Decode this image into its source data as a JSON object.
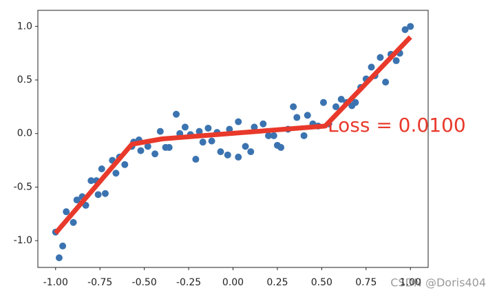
{
  "chart_data": {
    "type": "scatter",
    "xlim": [
      -1.1,
      1.1
    ],
    "ylim": [
      -1.25,
      1.15
    ],
    "xticks": [
      {
        "value": -1,
        "label": "-1.00"
      },
      {
        "value": -0.75,
        "label": "-0.75"
      },
      {
        "value": -0.5,
        "label": "-0.50"
      },
      {
        "value": -0.25,
        "label": "-0.25"
      },
      {
        "value": 0,
        "label": "0.00"
      },
      {
        "value": 0.25,
        "label": "0.25"
      },
      {
        "value": 0.5,
        "label": "0.50"
      },
      {
        "value": 0.75,
        "label": "0.75"
      },
      {
        "value": 1,
        "label": "1.00"
      }
    ],
    "yticks": [
      {
        "value": -1,
        "label": "-1.0"
      },
      -0.5,
      {
        "value": 0,
        "label": "0.0"
      },
      0.5,
      {
        "value": 1,
        "label": "1.0"
      }
    ],
    "annotation": "Loss = 0.0100",
    "watermark": "CSDN @Doris404",
    "series": [
      {
        "type": "scatter",
        "color": "#3b73b0",
        "x": [
          -1.0,
          -0.98,
          -0.96,
          -0.94,
          -0.9,
          -0.88,
          -0.85,
          -0.83,
          -0.8,
          -0.77,
          -0.76,
          -0.74,
          -0.72,
          -0.68,
          -0.66,
          -0.64,
          -0.61,
          -0.57,
          -0.56,
          -0.53,
          -0.52,
          -0.48,
          -0.44,
          -0.41,
          -0.38,
          -0.36,
          -0.32,
          -0.3,
          -0.27,
          -0.24,
          -0.21,
          -0.19,
          -0.17,
          -0.14,
          -0.12,
          -0.09,
          -0.07,
          -0.03,
          -0.02,
          0.03,
          0.03,
          0.07,
          0.1,
          0.12,
          0.17,
          0.2,
          0.23,
          0.25,
          0.27,
          0.31,
          0.34,
          0.36,
          0.4,
          0.42,
          0.45,
          0.48,
          0.51,
          0.54,
          0.58,
          0.61,
          0.64,
          0.67,
          0.69,
          0.72,
          0.75,
          0.78,
          0.8,
          0.83,
          0.86,
          0.89,
          0.92,
          0.94,
          0.97,
          1.0
        ],
        "y": [
          -0.92,
          -1.16,
          -1.05,
          -0.73,
          -0.83,
          -0.62,
          -0.59,
          -0.67,
          -0.44,
          -0.44,
          -0.57,
          -0.33,
          -0.56,
          -0.25,
          -0.37,
          -0.22,
          -0.29,
          -0.12,
          -0.08,
          -0.06,
          -0.16,
          -0.12,
          -0.19,
          0.02,
          -0.13,
          -0.13,
          0.18,
          0.0,
          0.06,
          -0.01,
          -0.24,
          0.02,
          -0.08,
          0.05,
          -0.07,
          0.01,
          -0.17,
          -0.2,
          0.04,
          0.11,
          -0.22,
          -0.12,
          -0.17,
          0.06,
          0.09,
          -0.02,
          -0.02,
          -0.11,
          -0.13,
          0.04,
          0.25,
          0.15,
          -0.02,
          0.17,
          0.09,
          0.07,
          0.29,
          0.09,
          0.25,
          0.32,
          0.29,
          0.26,
          0.29,
          0.43,
          0.51,
          0.62,
          0.54,
          0.71,
          0.48,
          0.74,
          0.68,
          0.75,
          0.97,
          1.0
        ]
      },
      {
        "type": "line",
        "color": "#e8392b",
        "x": [
          -1.0,
          -0.57,
          -0.4,
          0.52,
          1.0
        ],
        "y": [
          -0.93,
          -0.1,
          -0.05,
          0.07,
          0.9
        ]
      }
    ]
  }
}
